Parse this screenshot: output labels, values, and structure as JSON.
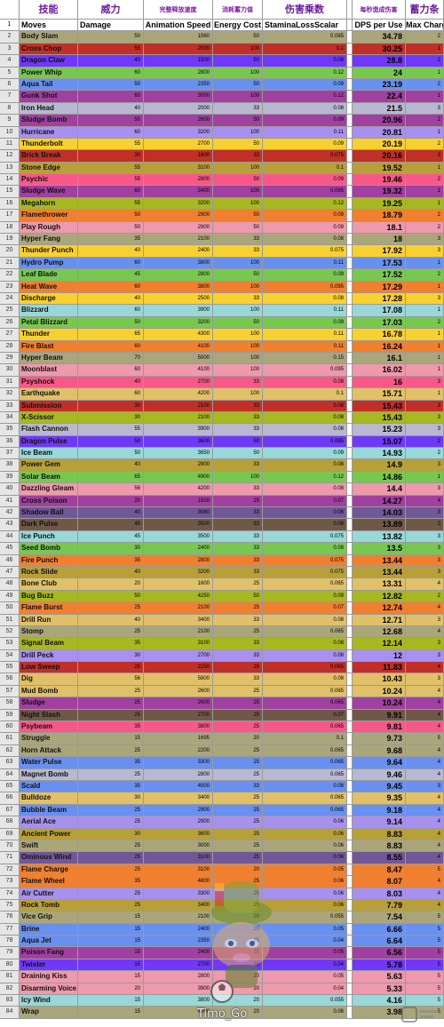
{
  "headers_cn": [
    "技能",
    "威力",
    "完整释放速度",
    "消耗蓄力值",
    "伤害乘数",
    "每秒造成伤害",
    "蓄力条"
  ],
  "headers_en": [
    "Moves",
    "Damage",
    "Animation Speed",
    "Energy Cost",
    "StaminaLossScalar",
    "DPS per Use",
    "Max Charges"
  ],
  "row_header_number": "1",
  "watermark": "Timo_Go",
  "rows": [
    [
      "2",
      "Body Slam",
      "50",
      "1560",
      "50",
      "0.085",
      "34.78",
      "2"
    ],
    [
      "3",
      "Cross Chop",
      "55",
      "2000",
      "100",
      "0.1",
      "30.25",
      "1"
    ],
    [
      "4",
      "Dragon Claw",
      "40",
      "1500",
      "50",
      "0.08",
      "28.8",
      "2"
    ],
    [
      "5",
      "Power Whip",
      "60",
      "2800",
      "100",
      "0.12",
      "24",
      "1"
    ],
    [
      "6",
      "Aqua Tail",
      "50",
      "2350",
      "50",
      "0.09",
      "23.19",
      "2"
    ],
    [
      "7",
      "Gunk Shot",
      "60",
      "3000",
      "100",
      "0.12",
      "22.4",
      "1"
    ],
    [
      "8",
      "Iron Head",
      "40",
      "2000",
      "33",
      "0.08",
      "21.5",
      "3"
    ],
    [
      "9",
      "Sludge Bomb",
      "50",
      "2600",
      "50",
      "0.09",
      "20.96",
      "2"
    ],
    [
      "10",
      "Hurricane",
      "60",
      "3200",
      "100",
      "0.11",
      "20.81",
      "1"
    ],
    [
      "11",
      "Thunderbolt",
      "55",
      "2700",
      "50",
      "0.09",
      "20.19",
      "2"
    ],
    [
      "12",
      "Brick Break",
      "30",
      "1600",
      "33",
      "0.075",
      "20.16",
      "3"
    ],
    [
      "13",
      "Stone Edge",
      "55",
      "3100",
      "100",
      "0.1",
      "19.52",
      "1"
    ],
    [
      "14",
      "Psychic",
      "55",
      "2800",
      "50",
      "0.09",
      "19.46",
      "2"
    ],
    [
      "15",
      "Sludge Wave",
      "60",
      "3400",
      "100",
      "0.095",
      "19.32",
      "1"
    ],
    [
      "16",
      "Megahorn",
      "55",
      "3200",
      "100",
      "0.12",
      "19.25",
      "1"
    ],
    [
      "17",
      "Flamethrower",
      "50",
      "2900",
      "50",
      "0.09",
      "18.79",
      "2"
    ],
    [
      "18",
      "Play Rough",
      "50",
      "2900",
      "50",
      "0.09",
      "18.1",
      "2"
    ],
    [
      "19",
      "Hyper Fang",
      "35",
      "2100",
      "33",
      "0.08",
      "18",
      "3"
    ],
    [
      "20",
      "Thunder Punch",
      "40",
      "2400",
      "33",
      "0.075",
      "17.92",
      "3"
    ],
    [
      "21",
      "Hydro Pump",
      "60",
      "3800",
      "100",
      "0.11",
      "17.53",
      "1"
    ],
    [
      "22",
      "Leaf Blade",
      "45",
      "2800",
      "50",
      "0.09",
      "17.52",
      "2"
    ],
    [
      "23",
      "Heat Wave",
      "60",
      "3800",
      "100",
      "0.095",
      "17.29",
      "1"
    ],
    [
      "24",
      "Discharge",
      "40",
      "2500",
      "33",
      "0.08",
      "17.28",
      "3"
    ],
    [
      "25",
      "Blizzard",
      "60",
      "3900",
      "100",
      "0.11",
      "17.08",
      "1"
    ],
    [
      "26",
      "Petal Blizzard",
      "50",
      "3200",
      "50",
      "0.09",
      "17.03",
      "2"
    ],
    [
      "27",
      "Thunder",
      "65",
      "4300",
      "100",
      "0.11",
      "16.78",
      "1"
    ],
    [
      "28",
      "Fire Blast",
      "60",
      "4100",
      "100",
      "0.11",
      "16.24",
      "1"
    ],
    [
      "29",
      "Hyper Beam",
      "70",
      "5000",
      "100",
      "0.15",
      "16.1",
      "1"
    ],
    [
      "30",
      "Moonblast",
      "60",
      "4100",
      "100",
      "0.095",
      "16.02",
      "1"
    ],
    [
      "31",
      "Psyshock",
      "40",
      "2700",
      "33",
      "0.08",
      "16",
      "3"
    ],
    [
      "32",
      "Earthquake",
      "60",
      "4200",
      "100",
      "0.1",
      "15.71",
      "1"
    ],
    [
      "33",
      "Submission",
      "30",
      "2100",
      "33",
      "0.08",
      "15.43",
      "3"
    ],
    [
      "34",
      "X-Scissor",
      "30",
      "2100",
      "33",
      "0.08",
      "15.43",
      "3"
    ],
    [
      "35",
      "Flash Cannon",
      "55",
      "3900",
      "33",
      "0.08",
      "15.23",
      "3"
    ],
    [
      "36",
      "Dragon Pulse",
      "50",
      "3600",
      "50",
      "0.085",
      "15.07",
      "2"
    ],
    [
      "37",
      "Ice Beam",
      "50",
      "3650",
      "50",
      "0.09",
      "14.93",
      "2"
    ],
    [
      "38",
      "Power Gem",
      "40",
      "2900",
      "33",
      "0.08",
      "14.9",
      "3"
    ],
    [
      "39",
      "Solar Beam",
      "65",
      "4900",
      "100",
      "0.12",
      "14.86",
      "1"
    ],
    [
      "40",
      "Dazzling Gleam",
      "56",
      "4200",
      "33",
      "0.08",
      "14.4",
      "3"
    ],
    [
      "41",
      "Cross Poison",
      "20",
      "1500",
      "25",
      "0.07",
      "14.27",
      "4"
    ],
    [
      "42",
      "Shadow Ball",
      "40",
      "3080",
      "33",
      "0.08",
      "14.03",
      "3"
    ],
    [
      "43",
      "Dark Pulse",
      "45",
      "3500",
      "33",
      "0.08",
      "13.89",
      "3"
    ],
    [
      "44",
      "Ice Punch",
      "45",
      "3500",
      "33",
      "0.075",
      "13.82",
      "3"
    ],
    [
      "45",
      "Seed Bomb",
      "30",
      "2400",
      "33",
      "0.08",
      "13.5",
      "3"
    ],
    [
      "46",
      "Fire Punch",
      "35",
      "2800",
      "33",
      "0.075",
      "13.44",
      "3"
    ],
    [
      "47",
      "Rock Slide",
      "40",
      "3200",
      "33",
      "0.075",
      "13.44",
      "3"
    ],
    [
      "48",
      "Bone Club",
      "20",
      "1600",
      "25",
      "0.065",
      "13.31",
      "4"
    ],
    [
      "49",
      "Bug Buzz",
      "50",
      "4250",
      "50",
      "0.09",
      "12.82",
      "2"
    ],
    [
      "50",
      "Flame Burst",
      "25",
      "2100",
      "25",
      "0.07",
      "12.74",
      "4"
    ],
    [
      "51",
      "Drill Run",
      "40",
      "3400",
      "33",
      "0.08",
      "12.71",
      "3"
    ],
    [
      "52",
      "Stomp",
      "25",
      "2100",
      "25",
      "0.065",
      "12.68",
      "4"
    ],
    [
      "53",
      "Signal Beam",
      "35",
      "3100",
      "33",
      "0.08",
      "12.14",
      "3"
    ],
    [
      "54",
      "Drill Peck",
      "30",
      "2700",
      "33",
      "0.08",
      "12",
      "3"
    ],
    [
      "55",
      "Low Sweep",
      "25",
      "2250",
      "25",
      "0.065",
      "11.83",
      "4"
    ],
    [
      "56",
      "Dig",
      "56",
      "5800",
      "33",
      "0.08",
      "10.43",
      "3"
    ],
    [
      "57",
      "Mud Bomb",
      "25",
      "2600",
      "25",
      "0.065",
      "10.24",
      "4"
    ],
    [
      "58",
      "Sludge",
      "25",
      "2600",
      "25",
      "0.065",
      "10.24",
      "4"
    ],
    [
      "59",
      "Night Slash",
      "25",
      "2700",
      "25",
      "0.07",
      "9.91",
      "4"
    ],
    [
      "60",
      "Psybeam",
      "35",
      "3800",
      "25",
      "0.065",
      "9.81",
      "4"
    ],
    [
      "61",
      "Struggle",
      "15",
      "1695",
      "20",
      "0.1",
      "9.73",
      "5"
    ],
    [
      "62",
      "Horn Attack",
      "25",
      "2200",
      "25",
      "0.065",
      "9.68",
      "4"
    ],
    [
      "63",
      "Water Pulse",
      "35",
      "3300",
      "25",
      "0.065",
      "9.64",
      "4"
    ],
    [
      "64",
      "Magnet Bomb",
      "25",
      "2800",
      "25",
      "0.065",
      "9.46",
      "4"
    ],
    [
      "65",
      "Scald",
      "35",
      "4000",
      "33",
      "0.08",
      "9.45",
      "3"
    ],
    [
      "66",
      "Bulldoze",
      "30",
      "3400",
      "25",
      "0.065",
      "9.35",
      "4"
    ],
    [
      "67",
      "Bubble Beam",
      "25",
      "2900",
      "25",
      "0.065",
      "9.18",
      "4"
    ],
    [
      "68",
      "Aerial Ace",
      "25",
      "2900",
      "25",
      "0.06",
      "9.14",
      "4"
    ],
    [
      "69",
      "Ancient Power",
      "30",
      "3600",
      "25",
      "0.06",
      "8.83",
      "4"
    ],
    [
      "70",
      "Swift",
      "25",
      "3000",
      "25",
      "0.06",
      "8.83",
      "4"
    ],
    [
      "71",
      "Ominous Wind",
      "25",
      "3100",
      "25",
      "0.06",
      "8.55",
      "4"
    ],
    [
      "72",
      "Flame Charge",
      "25",
      "3100",
      "20",
      "0.05",
      "8.47",
      "5"
    ],
    [
      "73",
      "Flame Wheel",
      "35",
      "4600",
      "25",
      "0.06",
      "8.07",
      "4"
    ],
    [
      "74",
      "Air Cutter",
      "25",
      "3300",
      "25",
      "0.06",
      "8.03",
      "4"
    ],
    [
      "75",
      "Rock Tomb",
      "25",
      "3400",
      "25",
      "0.06",
      "7.79",
      "4"
    ],
    [
      "76",
      "Vice Grip",
      "15",
      "2100",
      "20",
      "0.055",
      "7.54",
      "5"
    ],
    [
      "77",
      "Brine",
      "15",
      "2400",
      "25",
      "0.05",
      "6.66",
      "5"
    ],
    [
      "78",
      "Aqua Jet",
      "15",
      "2350",
      "25",
      "0.04",
      "6.64",
      "5"
    ],
    [
      "79",
      "Poison Fang",
      "15",
      "2400",
      "25",
      "0.05",
      "6.56",
      "5"
    ],
    [
      "80",
      "Twister",
      "15",
      "2700",
      "20",
      "0.04",
      "5.78",
      "5"
    ],
    [
      "81",
      "Draining Kiss",
      "15",
      "2800",
      "20",
      "0.05",
      "5.63",
      "5"
    ],
    [
      "82",
      "Disarming Voice",
      "20",
      "3900",
      "20",
      "0.04",
      "5.33",
      "5"
    ],
    [
      "83",
      "Icy Wind",
      "15",
      "3800",
      "20",
      "0.055",
      "4.16",
      "5"
    ],
    [
      "84",
      "Wrap",
      "15",
      "4000",
      "20",
      "0.06",
      "3.98",
      "5"
    ]
  ],
  "type_colors": {
    "normal": "#aaa67a",
    "fighting": "#c03028",
    "dragon": "#7038f8",
    "grass": "#78c850",
    "water": "#6890f0",
    "poison": "#a040a0",
    "steel": "#b8b8d0",
    "flying": "#a890f0",
    "electric": "#f8d030",
    "rock": "#b8a038",
    "psychic": "#f85888",
    "fire": "#f08030",
    "fairy": "#ee99ac",
    "bug": "#a8b820",
    "ice": "#98d8d8",
    "ground": "#e0c068",
    "ghost": "#705898",
    "dark": "#705848"
  },
  "move_types": [
    "normal",
    "fighting",
    "dragon",
    "grass",
    "water",
    "poison",
    "steel",
    "poison",
    "flying",
    "electric",
    "fighting",
    "rock",
    "psychic",
    "poison",
    "bug",
    "fire",
    "fairy",
    "normal",
    "electric",
    "water",
    "grass",
    "fire",
    "electric",
    "ice",
    "grass",
    "electric",
    "fire",
    "normal",
    "fairy",
    "psychic",
    "ground",
    "fighting",
    "bug",
    "steel",
    "dragon",
    "ice",
    "rock",
    "grass",
    "fairy",
    "poison",
    "ghost",
    "dark",
    "ice",
    "grass",
    "fire",
    "rock",
    "ground",
    "bug",
    "fire",
    "ground",
    "normal",
    "bug",
    "flying",
    "fighting",
    "ground",
    "ground",
    "poison",
    "dark",
    "psychic",
    "normal",
    "normal",
    "water",
    "steel",
    "water",
    "ground",
    "water",
    "flying",
    "rock",
    "normal",
    "ghost",
    "fire",
    "fire",
    "flying",
    "rock",
    "normal",
    "water",
    "water",
    "poison",
    "dragon",
    "fairy",
    "fairy",
    "ice",
    "normal"
  ]
}
